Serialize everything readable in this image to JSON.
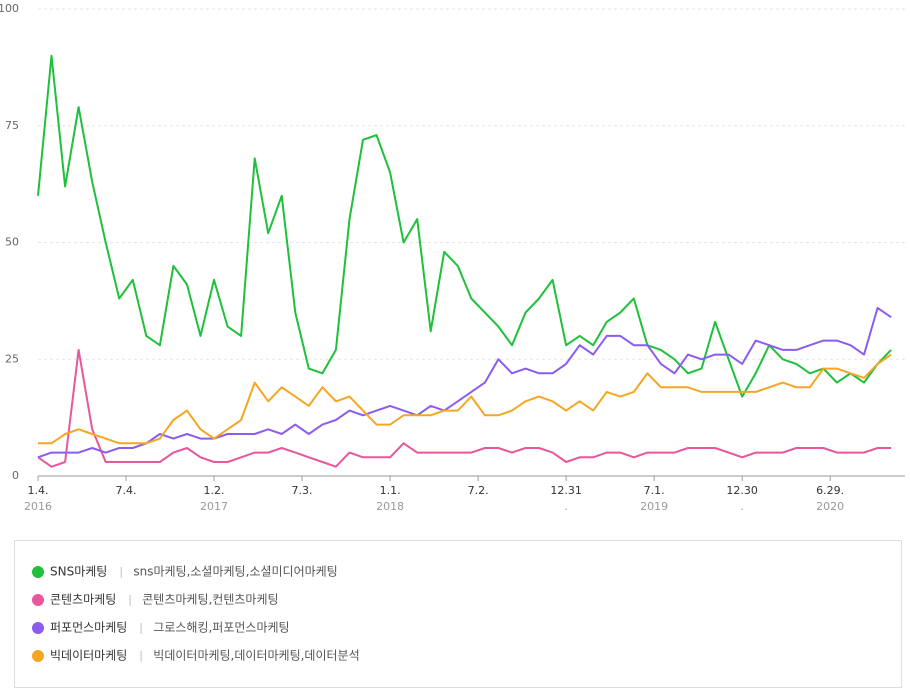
{
  "chart_data": {
    "type": "line",
    "x": [
      0,
      4,
      8,
      12,
      16,
      20,
      24,
      28,
      32,
      36,
      40,
      44,
      48,
      52,
      56,
      60,
      64,
      68,
      72,
      76,
      80,
      84,
      88,
      92,
      96,
      100,
      104,
      108,
      112,
      116,
      120,
      124,
      128,
      132,
      136,
      140,
      144,
      148,
      152,
      156,
      160,
      164,
      168,
      172,
      176,
      180,
      184,
      188,
      192,
      196,
      200,
      204,
      208,
      212,
      216,
      220,
      224,
      228,
      232,
      236,
      240,
      244,
      248,
      252
    ],
    "xlim": [
      0,
      253
    ],
    "xticks": [
      {
        "value": 0,
        "label": "1.4.",
        "sublabel": "2016"
      },
      {
        "value": 26,
        "label": "7.4."
      },
      {
        "value": 52,
        "label": "1.2.",
        "sublabel": "2017"
      },
      {
        "value": 78,
        "label": "7.3."
      },
      {
        "value": 104,
        "label": "1.1.",
        "sublabel": "2018"
      },
      {
        "value": 130,
        "label": "7.2."
      },
      {
        "value": 156,
        "label": "12.31",
        "sublabel": "."
      },
      {
        "value": 182,
        "label": "7.1.",
        "sublabel": "2019"
      },
      {
        "value": 208,
        "label": "12.30",
        "sublabel": "."
      },
      {
        "value": 234,
        "label": "6.29.",
        "sublabel": "2020"
      }
    ],
    "ylim": [
      0,
      100
    ],
    "yticks": [
      0,
      25,
      50,
      75,
      100
    ],
    "grid": true,
    "series": [
      {
        "name": "SNS마케팅",
        "keywords": "sns마케팅,소셜마케팅,소셜미디어마케팅",
        "color": "#1ec03c",
        "values": [
          60,
          90,
          62,
          79,
          63,
          50,
          38,
          42,
          30,
          28,
          45,
          41,
          30,
          42,
          32,
          30,
          68,
          52,
          60,
          35,
          23,
          22,
          27,
          55,
          72,
          73,
          65,
          50,
          55,
          31,
          48,
          45,
          38,
          35,
          32,
          28,
          35,
          38,
          42,
          28,
          30,
          28,
          33,
          35,
          38,
          28,
          27,
          25,
          22,
          23,
          33,
          25,
          17,
          22,
          28,
          25,
          24,
          22,
          23,
          20,
          22,
          20,
          24,
          27
        ]
      },
      {
        "name": "콘텐츠마케팅",
        "keywords": "콘텐츠마케팅,컨텐츠마케팅",
        "color": "#e8569b",
        "values": [
          4,
          2,
          3,
          27,
          10,
          3,
          3,
          3,
          3,
          3,
          5,
          6,
          4,
          3,
          3,
          4,
          5,
          5,
          6,
          5,
          4,
          3,
          2,
          5,
          4,
          4,
          4,
          7,
          5,
          5,
          5,
          5,
          5,
          6,
          6,
          5,
          6,
          6,
          5,
          3,
          4,
          4,
          5,
          5,
          4,
          5,
          5,
          5,
          6,
          6,
          6,
          5,
          4,
          5,
          5,
          5,
          6,
          6,
          6,
          5,
          5,
          5,
          6,
          6
        ]
      },
      {
        "name": "퍼포먼스마케팅",
        "keywords": "그로스해킹,퍼포먼스마케팅",
        "color": "#8b5cf0",
        "values": [
          4,
          5,
          5,
          5,
          6,
          5,
          6,
          6,
          7,
          9,
          8,
          9,
          8,
          8,
          9,
          9,
          9,
          10,
          9,
          11,
          9,
          11,
          12,
          14,
          13,
          14,
          15,
          14,
          13,
          15,
          14,
          16,
          18,
          20,
          25,
          22,
          23,
          22,
          22,
          24,
          28,
          26,
          30,
          30,
          28,
          28,
          24,
          22,
          26,
          25,
          26,
          26,
          24,
          29,
          28,
          27,
          27,
          28,
          29,
          29,
          28,
          26,
          36,
          34
        ]
      },
      {
        "name": "빅데이터마케팅",
        "keywords": "빅데이터마케팅,데이터마케팅,데이터분석",
        "color": "#f5a623",
        "values": [
          7,
          7,
          9,
          10,
          9,
          8,
          7,
          7,
          7,
          8,
          12,
          14,
          10,
          8,
          10,
          12,
          20,
          16,
          19,
          17,
          15,
          19,
          16,
          17,
          14,
          11,
          11,
          13,
          13,
          13,
          14,
          14,
          17,
          13,
          13,
          14,
          16,
          17,
          16,
          14,
          16,
          14,
          18,
          17,
          18,
          22,
          19,
          19,
          19,
          18,
          18,
          18,
          18,
          18,
          19,
          20,
          19,
          19,
          23,
          23,
          22,
          21,
          24,
          26
        ]
      }
    ]
  }
}
